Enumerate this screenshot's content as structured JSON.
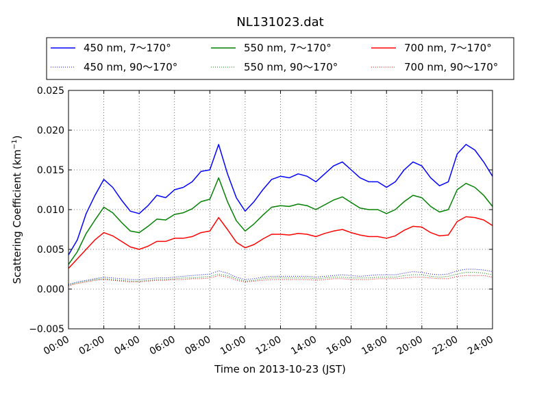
{
  "chart_data": {
    "type": "line",
    "title": "NL131023.dat",
    "xlabel": "Time on 2013-10-23 (JST)",
    "ylabel_main": "Scattering Coefficient (km",
    "ylabel_sup": "−1",
    "ylabel_end": ")",
    "xlim": [
      "00:00",
      "24:00"
    ],
    "ylim": [
      -0.005,
      0.025
    ],
    "grid": true,
    "legend_position": "top",
    "x_ticks": [
      "00:00",
      "02:00",
      "04:00",
      "06:00",
      "08:00",
      "10:00",
      "12:00",
      "14:00",
      "16:00",
      "18:00",
      "20:00",
      "22:00",
      "24:00"
    ],
    "y_ticks": [
      "−0.005",
      "0.000",
      "0.005",
      "0.010",
      "0.015",
      "0.020",
      "0.025"
    ],
    "x_hours": [
      0,
      0.5,
      1,
      1.5,
      2,
      2.5,
      3,
      3.5,
      4,
      4.5,
      5,
      5.5,
      6,
      6.5,
      7,
      7.5,
      8,
      8.5,
      9,
      9.5,
      10,
      10.5,
      11,
      11.5,
      12,
      12.5,
      13,
      13.5,
      14,
      14.5,
      15,
      15.5,
      16,
      16.5,
      17,
      17.5,
      18,
      18.5,
      19,
      19.5,
      20,
      20.5,
      21,
      21.5,
      22,
      22.5,
      23,
      23.5,
      24
    ],
    "series": [
      {
        "name": "450 nm, 7～170°",
        "color": "#0000ff",
        "style": "solid",
        "values": [
          0.0043,
          0.0062,
          0.0095,
          0.0118,
          0.0138,
          0.0128,
          0.0112,
          0.0098,
          0.0095,
          0.0105,
          0.0118,
          0.0115,
          0.0125,
          0.0128,
          0.0135,
          0.0148,
          0.015,
          0.0182,
          0.0145,
          0.0115,
          0.0098,
          0.011,
          0.0125,
          0.0138,
          0.0142,
          0.014,
          0.0145,
          0.0142,
          0.0135,
          0.0145,
          0.0155,
          0.016,
          0.015,
          0.014,
          0.0135,
          0.0135,
          0.0128,
          0.0135,
          0.015,
          0.016,
          0.0155,
          0.014,
          0.013,
          0.0135,
          0.017,
          0.0182,
          0.0175,
          0.016,
          0.0142
        ]
      },
      {
        "name": "550 nm, 7～170°",
        "color": "#008000",
        "style": "solid",
        "values": [
          0.0031,
          0.0047,
          0.007,
          0.0087,
          0.0103,
          0.0096,
          0.0084,
          0.0073,
          0.0071,
          0.0079,
          0.0088,
          0.0087,
          0.0094,
          0.0096,
          0.0101,
          0.011,
          0.0113,
          0.014,
          0.011,
          0.0086,
          0.0073,
          0.0082,
          0.0093,
          0.0103,
          0.0105,
          0.0104,
          0.0107,
          0.0105,
          0.01,
          0.0106,
          0.0112,
          0.0116,
          0.0109,
          0.0102,
          0.01,
          0.01,
          0.0095,
          0.01,
          0.011,
          0.0118,
          0.0115,
          0.0104,
          0.0097,
          0.01,
          0.0125,
          0.0133,
          0.0128,
          0.0118,
          0.0104
        ]
      },
      {
        "name": "700 nm, 7～170°",
        "color": "#ff0000",
        "style": "solid",
        "values": [
          0.0026,
          0.0038,
          0.005,
          0.0062,
          0.0071,
          0.0067,
          0.006,
          0.0053,
          0.005,
          0.0054,
          0.006,
          0.006,
          0.0064,
          0.0064,
          0.0066,
          0.0071,
          0.0073,
          0.009,
          0.0075,
          0.0059,
          0.0052,
          0.0056,
          0.0063,
          0.0069,
          0.0069,
          0.0068,
          0.007,
          0.0069,
          0.0066,
          0.007,
          0.0073,
          0.0075,
          0.0071,
          0.0068,
          0.0066,
          0.0066,
          0.0064,
          0.0067,
          0.0074,
          0.0079,
          0.0078,
          0.0071,
          0.0067,
          0.0068,
          0.0085,
          0.0091,
          0.009,
          0.0087,
          0.008
        ]
      },
      {
        "name": "450 nm, 90～170°",
        "color": "#0000ff",
        "style": "dotted",
        "values": [
          0.0006,
          0.0009,
          0.0011,
          0.0013,
          0.0015,
          0.0014,
          0.0013,
          0.0012,
          0.0012,
          0.0013,
          0.0014,
          0.0014,
          0.0015,
          0.0016,
          0.0017,
          0.0018,
          0.0019,
          0.0023,
          0.002,
          0.0015,
          0.0012,
          0.0013,
          0.0015,
          0.0016,
          0.0016,
          0.0016,
          0.0016,
          0.0016,
          0.0015,
          0.0016,
          0.0017,
          0.0018,
          0.0017,
          0.0016,
          0.0017,
          0.0018,
          0.0018,
          0.0018,
          0.002,
          0.0022,
          0.0021,
          0.0019,
          0.0018,
          0.0019,
          0.0023,
          0.0025,
          0.0025,
          0.0024,
          0.0022
        ]
      },
      {
        "name": "550 nm, 90～170°",
        "color": "#008000",
        "style": "dotted",
        "values": [
          0.0005,
          0.0008,
          0.001,
          0.0012,
          0.0013,
          0.0012,
          0.0011,
          0.001,
          0.001,
          0.0011,
          0.0012,
          0.0012,
          0.0013,
          0.0014,
          0.0014,
          0.0015,
          0.0016,
          0.0019,
          0.0017,
          0.0013,
          0.001,
          0.0011,
          0.0013,
          0.0014,
          0.0014,
          0.0014,
          0.0014,
          0.0014,
          0.0013,
          0.0014,
          0.0015,
          0.0015,
          0.0014,
          0.0014,
          0.0014,
          0.0015,
          0.0015,
          0.0015,
          0.0017,
          0.0018,
          0.0018,
          0.0016,
          0.0015,
          0.0016,
          0.0019,
          0.0021,
          0.0021,
          0.002,
          0.0018
        ]
      },
      {
        "name": "700 nm, 90～170°",
        "color": "#ff0000",
        "style": "dotted",
        "values": [
          0.0004,
          0.0007,
          0.0009,
          0.0011,
          0.0012,
          0.0011,
          0.001,
          0.0009,
          0.0009,
          0.001,
          0.0011,
          0.0011,
          0.0012,
          0.0012,
          0.0013,
          0.0013,
          0.0014,
          0.0017,
          0.0015,
          0.0011,
          0.0009,
          0.001,
          0.0011,
          0.0012,
          0.0012,
          0.0012,
          0.0012,
          0.0012,
          0.0011,
          0.0012,
          0.0013,
          0.0013,
          0.0012,
          0.0012,
          0.0012,
          0.0013,
          0.0013,
          0.0013,
          0.0014,
          0.0015,
          0.0015,
          0.0014,
          0.0013,
          0.0013,
          0.0016,
          0.0017,
          0.0017,
          0.0017,
          0.0015
        ]
      }
    ]
  }
}
